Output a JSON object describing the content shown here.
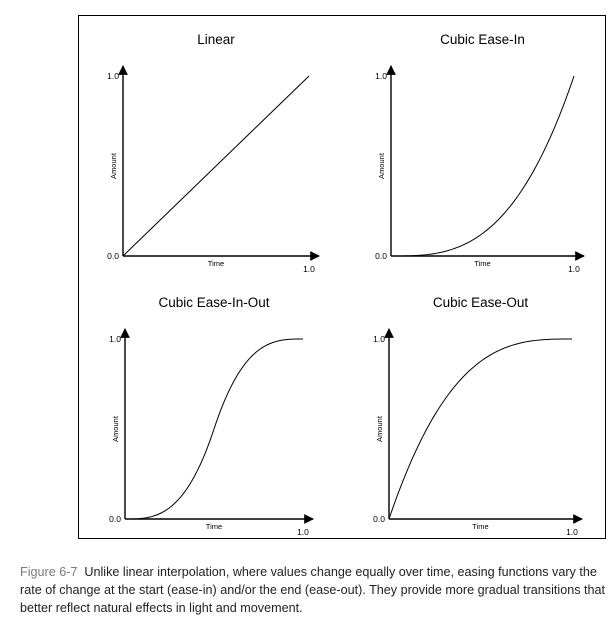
{
  "chart_data": [
    {
      "type": "line",
      "title": "Linear",
      "xlabel": "Time",
      "ylabel": "Amount",
      "x_ticks": [
        "1.0"
      ],
      "y_ticks": [
        "0.0",
        "1.0"
      ],
      "xlim": [
        0,
        1
      ],
      "ylim": [
        0,
        1
      ],
      "grid": false,
      "x": [
        0,
        0.1,
        0.2,
        0.3,
        0.4,
        0.5,
        0.6,
        0.7,
        0.8,
        0.9,
        1.0
      ],
      "series": [
        {
          "values": [
            0,
            0.1,
            0.2,
            0.3,
            0.4,
            0.5,
            0.6,
            0.7,
            0.8,
            0.9,
            1.0
          ]
        }
      ]
    },
    {
      "type": "line",
      "title": "Cubic Ease-In",
      "xlabel": "Time",
      "ylabel": "Amount",
      "x_ticks": [
        "1.0"
      ],
      "y_ticks": [
        "0.0",
        "1.0"
      ],
      "xlim": [
        0,
        1
      ],
      "ylim": [
        0,
        1
      ],
      "grid": false,
      "x": [
        0,
        0.1,
        0.2,
        0.3,
        0.4,
        0.5,
        0.6,
        0.7,
        0.8,
        0.9,
        1.0
      ],
      "series": [
        {
          "values": [
            0,
            0.001,
            0.008,
            0.027,
            0.064,
            0.125,
            0.216,
            0.343,
            0.512,
            0.729,
            1.0
          ]
        }
      ]
    },
    {
      "type": "line",
      "title": "Cubic Ease-In-Out",
      "xlabel": "Time",
      "ylabel": "Amount",
      "x_ticks": [
        "1.0"
      ],
      "y_ticks": [
        "0.0",
        "1.0"
      ],
      "xlim": [
        0,
        1
      ],
      "ylim": [
        0,
        1
      ],
      "grid": false,
      "x": [
        0,
        0.1,
        0.2,
        0.3,
        0.4,
        0.5,
        0.6,
        0.7,
        0.8,
        0.9,
        1.0
      ],
      "series": [
        {
          "values": [
            0,
            0.004,
            0.032,
            0.108,
            0.256,
            0.5,
            0.744,
            0.892,
            0.968,
            0.996,
            1.0
          ]
        }
      ]
    },
    {
      "type": "line",
      "title": "Cubic Ease-Out",
      "xlabel": "Time",
      "ylabel": "Amount",
      "x_ticks": [
        "1.0"
      ],
      "y_ticks": [
        "0.0",
        "1.0"
      ],
      "xlim": [
        0,
        1
      ],
      "ylim": [
        0,
        1
      ],
      "grid": false,
      "x": [
        0,
        0.1,
        0.2,
        0.3,
        0.4,
        0.5,
        0.6,
        0.7,
        0.8,
        0.9,
        1.0
      ],
      "series": [
        {
          "values": [
            0,
            0.271,
            0.488,
            0.657,
            0.784,
            0.875,
            0.936,
            0.973,
            0.992,
            0.999,
            1.0
          ]
        }
      ]
    }
  ],
  "caption": {
    "label": "Figure 6-7",
    "text": "Unlike linear interpolation, where values change equally over time, easing functions vary the rate of change at the start (ease-in) and/or the end (ease-out). They provide more gradual transitions that better reflect natural effects in light and movement."
  },
  "colors": {
    "line": "#000000",
    "frame": "#000000",
    "caption_label": "#7a7a7a",
    "caption_text": "#222222"
  }
}
